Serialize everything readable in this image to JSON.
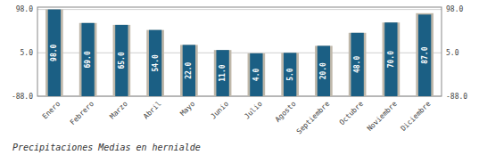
{
  "chart_data": {
    "type": "bar",
    "title": "Precipitaciones Medias en hernialde",
    "categories": [
      "Enero",
      "Febrero",
      "Marzo",
      "Abril",
      "Mayo",
      "Junio",
      "Julio",
      "Agosto",
      "Septiembre",
      "Octubre",
      "Noviembre",
      "Diciembre"
    ],
    "series": [
      {
        "color": "#bfb8aa",
        "values": [
          98.0,
          69.0,
          65.0,
          54.0,
          22.0,
          11.0,
          4.0,
          5.0,
          20.0,
          48.0,
          70.0,
          90.0
        ]
      },
      {
        "color": "#1b5f84",
        "values": [
          98.0,
          69.0,
          65.0,
          54.0,
          22.0,
          11.0,
          4.0,
          5.0,
          20.0,
          48.0,
          70.0,
          87.0
        ],
        "value_labels": [
          "98.0",
          "69.0",
          "65.0",
          "54.0",
          "22.0",
          "11.0",
          "4.0",
          "5.0",
          "20.0",
          "48.0",
          "70.0",
          "87.0"
        ]
      }
    ],
    "ylim": [
      -88.0,
      103.0
    ],
    "yticks": [
      {
        "value": -88.0,
        "label": "-88.0"
      },
      {
        "value": 5.0,
        "label": "5.0"
      },
      {
        "value": 98.0,
        "label": "98.0"
      }
    ],
    "y2lim": [
      -88.0,
      103.0
    ],
    "y2ticks": [
      {
        "value": -88.0,
        "label": "-88.0"
      },
      {
        "value": 5.0,
        "label": "5.0"
      },
      {
        "value": 98.0,
        "label": "98.0"
      }
    ],
    "grid": true,
    "data_labels": true
  }
}
